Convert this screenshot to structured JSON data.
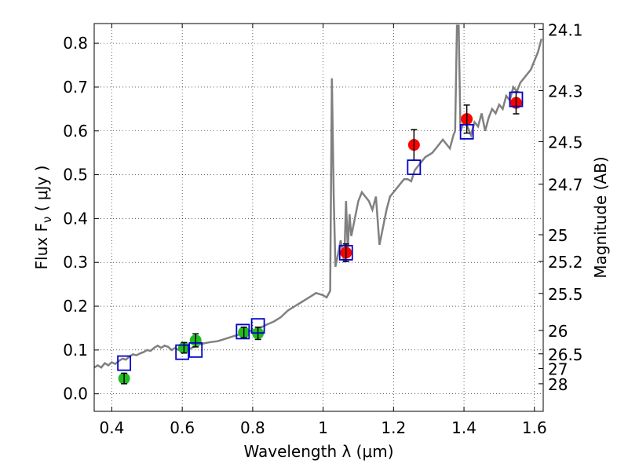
{
  "chart_data": {
    "type": "scatter",
    "xlabel": "Wavelength  λ (μm)",
    "ylabel": "Flux  F",
    "ylabel_sub": "ν",
    "ylabel_unit": " ( μJy )",
    "y2label": "Magnitude (AB)",
    "xlim": [
      0.35,
      1.625
    ],
    "ylim": [
      -0.04,
      0.845
    ],
    "grid": true,
    "x_ticks": [
      {
        "v": 0.4,
        "label": "0.4"
      },
      {
        "v": 0.6,
        "label": "0.6"
      },
      {
        "v": 0.8,
        "label": "0.8"
      },
      {
        "v": 1.0,
        "label": "1"
      },
      {
        "v": 1.2,
        "label": "1.2"
      },
      {
        "v": 1.4,
        "label": "1.4"
      },
      {
        "v": 1.6,
        "label": "1.6"
      }
    ],
    "y_ticks": [
      {
        "v": 0.0,
        "label": "0.0"
      },
      {
        "v": 0.1,
        "label": "0.1"
      },
      {
        "v": 0.2,
        "label": "0.2"
      },
      {
        "v": 0.3,
        "label": "0.3"
      },
      {
        "v": 0.4,
        "label": "0.4"
      },
      {
        "v": 0.5,
        "label": "0.5"
      },
      {
        "v": 0.6,
        "label": "0.6"
      },
      {
        "v": 0.7,
        "label": "0.7"
      },
      {
        "v": 0.8,
        "label": "0.8"
      }
    ],
    "y2_ticks": [
      {
        "mag": 24.1,
        "label": "24.1"
      },
      {
        "mag": 24.3,
        "label": "24.3"
      },
      {
        "mag": 24.5,
        "label": "24.5"
      },
      {
        "mag": 24.7,
        "label": "24.7"
      },
      {
        "mag": 25.0,
        "label": "25"
      },
      {
        "mag": 25.2,
        "label": "25.2"
      },
      {
        "mag": 25.5,
        "label": "25.5"
      },
      {
        "mag": 26.0,
        "label": "26"
      },
      {
        "mag": 26.5,
        "label": "26.5"
      },
      {
        "mag": 27.0,
        "label": "27"
      },
      {
        "mag": 28.0,
        "label": "28"
      }
    ],
    "series": [
      {
        "type": "line",
        "color": "#808080",
        "x": [
          0.35,
          0.36,
          0.37,
          0.38,
          0.39,
          0.4,
          0.41,
          0.42,
          0.43,
          0.44,
          0.45,
          0.46,
          0.47,
          0.48,
          0.49,
          0.5,
          0.51,
          0.52,
          0.53,
          0.54,
          0.55,
          0.56,
          0.57,
          0.58,
          0.59,
          0.6,
          0.62,
          0.64,
          0.66,
          0.68,
          0.7,
          0.72,
          0.74,
          0.76,
          0.78,
          0.8,
          0.82,
          0.84,
          0.86,
          0.88,
          0.9,
          0.92,
          0.94,
          0.96,
          0.98,
          1.0,
          1.01,
          1.02,
          1.025,
          1.03,
          1.035,
          1.04,
          1.05,
          1.06,
          1.065,
          1.07,
          1.075,
          1.08,
          1.09,
          1.1,
          1.11,
          1.12,
          1.13,
          1.14,
          1.15,
          1.16,
          1.17,
          1.18,
          1.19,
          1.2,
          1.21,
          1.22,
          1.23,
          1.24,
          1.25,
          1.26,
          1.27,
          1.28,
          1.29,
          1.3,
          1.31,
          1.32,
          1.33,
          1.34,
          1.35,
          1.36,
          1.37,
          1.375,
          1.38,
          1.385,
          1.39,
          1.4,
          1.41,
          1.42,
          1.43,
          1.44,
          1.45,
          1.46,
          1.47,
          1.48,
          1.49,
          1.5,
          1.51,
          1.52,
          1.53,
          1.54,
          1.55,
          1.56,
          1.57,
          1.58,
          1.59,
          1.6,
          1.61,
          1.62
        ],
        "y": [
          0.06,
          0.065,
          0.06,
          0.07,
          0.065,
          0.072,
          0.068,
          0.075,
          0.08,
          0.078,
          0.085,
          0.09,
          0.088,
          0.092,
          0.095,
          0.1,
          0.098,
          0.105,
          0.11,
          0.105,
          0.11,
          0.107,
          0.1,
          0.105,
          0.1,
          0.098,
          0.102,
          0.11,
          0.115,
          0.118,
          0.12,
          0.125,
          0.13,
          0.135,
          0.14,
          0.145,
          0.15,
          0.158,
          0.165,
          0.175,
          0.19,
          0.2,
          0.21,
          0.22,
          0.23,
          0.225,
          0.22,
          0.235,
          0.72,
          0.45,
          0.29,
          0.31,
          0.35,
          0.3,
          0.44,
          0.33,
          0.41,
          0.36,
          0.4,
          0.44,
          0.46,
          0.45,
          0.44,
          0.42,
          0.45,
          0.34,
          0.38,
          0.42,
          0.45,
          0.46,
          0.47,
          0.48,
          0.49,
          0.49,
          0.485,
          0.51,
          0.52,
          0.53,
          0.54,
          0.545,
          0.55,
          0.56,
          0.57,
          0.58,
          0.57,
          0.56,
          0.59,
          0.6,
          0.84,
          0.84,
          0.6,
          0.62,
          0.61,
          0.59,
          0.62,
          0.61,
          0.64,
          0.6,
          0.63,
          0.65,
          0.64,
          0.66,
          0.65,
          0.68,
          0.67,
          0.7,
          0.69,
          0.71,
          0.72,
          0.73,
          0.74,
          0.76,
          0.78,
          0.81
        ]
      },
      {
        "type": "points",
        "color": "#22bb22",
        "points": [
          {
            "x": 0.435,
            "y": 0.035,
            "err": 0.012
          },
          {
            "x": 0.605,
            "y": 0.105,
            "err": 0.012
          },
          {
            "x": 0.638,
            "y": 0.122,
            "err": 0.015
          },
          {
            "x": 0.775,
            "y": 0.14,
            "err": 0.012
          },
          {
            "x": 0.815,
            "y": 0.138,
            "err": 0.014
          }
        ]
      },
      {
        "type": "points",
        "color": "#ff0000",
        "points": [
          {
            "x": 1.065,
            "y": 0.322,
            "err": 0.02
          },
          {
            "x": 1.258,
            "y": 0.568,
            "err": 0.035
          },
          {
            "x": 1.408,
            "y": 0.627,
            "err": 0.032
          },
          {
            "x": 1.548,
            "y": 0.664,
            "err": 0.025
          }
        ]
      },
      {
        "type": "squares",
        "color": "#0000cc",
        "points": [
          {
            "x": 0.435,
            "y": 0.07
          },
          {
            "x": 0.6,
            "y": 0.095
          },
          {
            "x": 0.638,
            "y": 0.1
          },
          {
            "x": 0.772,
            "y": 0.142
          },
          {
            "x": 0.815,
            "y": 0.155
          },
          {
            "x": 1.065,
            "y": 0.322
          },
          {
            "x": 1.258,
            "y": 0.517
          },
          {
            "x": 1.408,
            "y": 0.598
          },
          {
            "x": 1.548,
            "y": 0.672
          }
        ]
      }
    ]
  }
}
